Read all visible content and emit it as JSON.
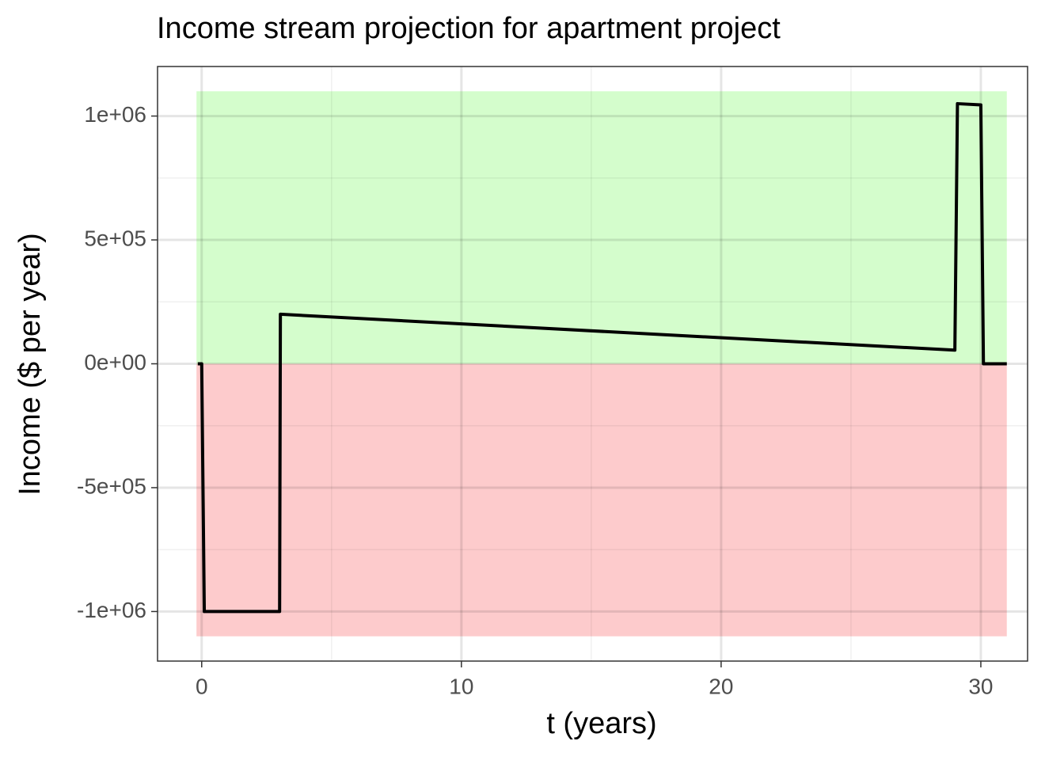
{
  "chart_data": {
    "type": "line",
    "title": "Income stream projection for apartment project",
    "x_label": "t (years)",
    "y_label": "Income ($ per year)",
    "x": [
      -0.15,
      0,
      0.1,
      3,
      3.03,
      29,
      29.1,
      30,
      30.1,
      31
    ],
    "series": [
      {
        "color": "#000000",
        "values": [
          0,
          0,
          -1000000,
          -1000000,
          200000,
          55000,
          1050000,
          1045000,
          0,
          0
        ]
      }
    ],
    "bands": [
      {
        "xmin": -0.2,
        "xmax": 31,
        "ymin": 0,
        "ymax": 1100000,
        "color": "#d4fdcc"
      },
      {
        "xmin": -0.2,
        "xmax": 31,
        "ymin": -1100000,
        "ymax": 0,
        "color": "#fdcbcc"
      }
    ],
    "xlim": [
      -1.7,
      31.8
    ],
    "ylim": [
      -1200000,
      1200000
    ],
    "xticks": [
      0,
      10,
      20,
      30
    ],
    "yticks": [
      {
        "value": -1000000,
        "label": "-1e+06"
      },
      {
        "value": -500000,
        "label": "-5e+05"
      },
      {
        "value": 0,
        "label": "0e+00"
      },
      {
        "value": 500000,
        "label": "5e+05"
      },
      {
        "value": 1000000,
        "label": "1e+06"
      }
    ],
    "xminor": [
      5,
      15,
      25
    ],
    "yminor": [
      -750000,
      -250000,
      250000,
      750000
    ],
    "grid": true
  }
}
